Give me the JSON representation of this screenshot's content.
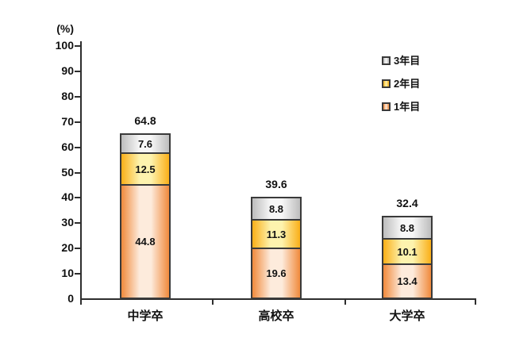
{
  "chart_data": {
    "type": "bar",
    "stacked": true,
    "title": "",
    "unit_label": "(%)",
    "xlabel": "",
    "ylabel": "(%)",
    "ylim": [
      0,
      100
    ],
    "ytick_step": 10,
    "yticks": [
      0,
      10,
      20,
      30,
      40,
      50,
      60,
      70,
      80,
      90,
      100
    ],
    "grid": false,
    "categories": [
      "中学卒",
      "高校卒",
      "大学卒"
    ],
    "series": [
      {
        "name": "1年目",
        "values": [
          44.8,
          19.6,
          13.4
        ],
        "edge_color": "#F08A3C",
        "center_color": "#FDEBDC"
      },
      {
        "name": "2年目",
        "values": [
          12.5,
          11.3,
          10.1
        ],
        "edge_color": "#FAAF18",
        "center_color": "#FDF3AE"
      },
      {
        "name": "3年目",
        "values": [
          7.6,
          8.8,
          8.8
        ],
        "edge_color": "#BDBDBD",
        "center_color": "#F7F7F7"
      }
    ],
    "totals": [
      64.8,
      39.6,
      32.4
    ],
    "legend_position": "top-right",
    "legend_order": [
      "3年目",
      "2年目",
      "1年目"
    ],
    "segment_border_color": "#3A3A3A",
    "axis_color": "#2E2E2E",
    "label_color": "#111111",
    "background_color": "#FFFFFF"
  }
}
